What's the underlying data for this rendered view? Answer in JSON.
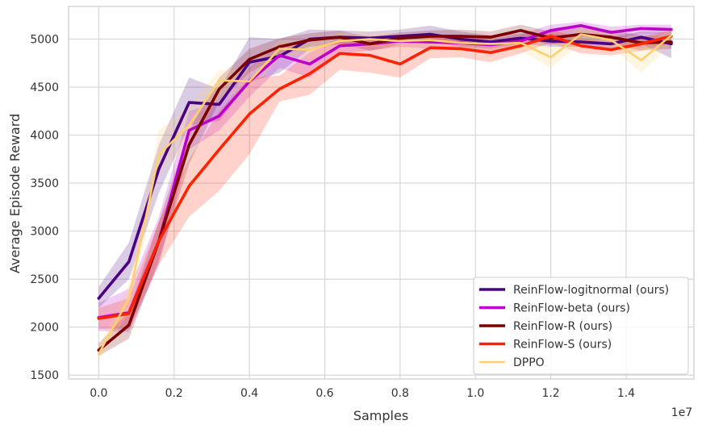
{
  "chart_data": {
    "type": "line",
    "title": "",
    "xlabel": "Samples",
    "ylabel": "Average Episode Reward",
    "x_offset_label": "1e7",
    "xlim": [
      -0.08,
      1.58
    ],
    "ylim": [
      1460,
      5340
    ],
    "xticks": [
      0.0,
      0.2,
      0.4,
      0.6,
      0.8,
      1.0,
      1.2,
      1.4
    ],
    "xtick_labels": [
      "0.0",
      "0.2",
      "0.4",
      "0.6",
      "0.8",
      "1.0",
      "1.2",
      "1.4"
    ],
    "yticks": [
      1500,
      2000,
      2500,
      3000,
      3500,
      4000,
      4500,
      5000
    ],
    "ytick_labels": [
      "1500",
      "2000",
      "2500",
      "3000",
      "3500",
      "4000",
      "4500",
      "5000"
    ],
    "grid": true,
    "legend_position": "bottom-right",
    "series": [
      {
        "name": "ReinFlow-logitnormal (ours)",
        "color": "#4b0082",
        "x": [
          0.0,
          0.08,
          0.16,
          0.24,
          0.32,
          0.4,
          0.48,
          0.56,
          0.64,
          0.72,
          0.8,
          0.88,
          0.96,
          1.04,
          1.12,
          1.2,
          1.28,
          1.36,
          1.44,
          1.52
        ],
        "values": [
          2300,
          2680,
          3650,
          4340,
          4320,
          4760,
          4820,
          5000,
          5020,
          5010,
          5030,
          5050,
          5000,
          4970,
          5010,
          4980,
          4970,
          4950,
          5020,
          4950
        ],
        "lower": [
          2200,
          2500,
          3400,
          4100,
          4150,
          4550,
          4650,
          4900,
          4950,
          4950,
          4970,
          4980,
          4920,
          4900,
          4950,
          4920,
          4920,
          4880,
          4950,
          4800
        ],
        "upper": [
          2420,
          2880,
          3900,
          4600,
          4480,
          5020,
          5000,
          5100,
          5090,
          5080,
          5100,
          5140,
          5080,
          5040,
          5060,
          5050,
          5030,
          5020,
          5080,
          5080
        ]
      },
      {
        "name": "ReinFlow-beta (ours)",
        "color": "#bb00cc",
        "x": [
          0.0,
          0.08,
          0.16,
          0.24,
          0.32,
          0.4,
          0.48,
          0.56,
          0.64,
          0.72,
          0.8,
          0.88,
          0.96,
          1.04,
          1.12,
          1.2,
          1.28,
          1.36,
          1.44,
          1.52
        ],
        "values": [
          2100,
          2150,
          2900,
          4050,
          4200,
          4560,
          4830,
          4740,
          4930,
          4950,
          4980,
          4970,
          4960,
          4940,
          4980,
          5090,
          5140,
          5070,
          5110,
          5100
        ],
        "lower": [
          1960,
          1950,
          2650,
          3850,
          4050,
          4400,
          4700,
          4600,
          4850,
          4880,
          4920,
          4900,
          4900,
          4880,
          4920,
          5000,
          5050,
          5000,
          5050,
          5040
        ],
        "upper": [
          2250,
          2400,
          3150,
          4250,
          4350,
          4700,
          4950,
          4880,
          5010,
          5020,
          5040,
          5040,
          5030,
          5000,
          5050,
          5150,
          5180,
          5130,
          5150,
          5150
        ]
      },
      {
        "name": "ReinFlow-R (ours)",
        "color": "#7b0000",
        "x": [
          0.0,
          0.08,
          0.16,
          0.24,
          0.32,
          0.4,
          0.48,
          0.56,
          0.64,
          0.72,
          0.8,
          0.88,
          0.96,
          1.04,
          1.12,
          1.2,
          1.28,
          1.36,
          1.44,
          1.52
        ],
        "values": [
          1760,
          2020,
          2900,
          3900,
          4480,
          4790,
          4920,
          4990,
          5020,
          4950,
          5010,
          5030,
          5030,
          5020,
          5090,
          5010,
          5050,
          5020,
          4960,
          4970
        ],
        "lower": [
          1700,
          1880,
          2700,
          3700,
          4350,
          4650,
          4830,
          4920,
          4950,
          4880,
          4940,
          4970,
          4960,
          4960,
          5020,
          4940,
          4980,
          4950,
          4880,
          4900
        ],
        "upper": [
          1830,
          2160,
          3100,
          4050,
          4600,
          4900,
          5010,
          5060,
          5090,
          5020,
          5070,
          5090,
          5100,
          5080,
          5150,
          5080,
          5120,
          5090,
          5040,
          5040
        ]
      },
      {
        "name": "ReinFlow-S (ours)",
        "color": "#ff2200",
        "x": [
          0.0,
          0.08,
          0.16,
          0.24,
          0.32,
          0.4,
          0.48,
          0.56,
          0.64,
          0.72,
          0.8,
          0.88,
          0.96,
          1.04,
          1.12,
          1.2,
          1.28,
          1.36,
          1.44,
          1.52
        ],
        "values": [
          2090,
          2140,
          2900,
          3470,
          3850,
          4220,
          4480,
          4640,
          4850,
          4830,
          4740,
          4910,
          4900,
          4860,
          4930,
          5030,
          4930,
          4890,
          4950,
          5030
        ],
        "lower": [
          1980,
          1980,
          2650,
          3150,
          3420,
          3800,
          4350,
          4420,
          4680,
          4650,
          4600,
          4800,
          4810,
          4760,
          4850,
          4960,
          4850,
          4830,
          4880,
          4960
        ],
        "upper": [
          2200,
          2300,
          3100,
          3750,
          4250,
          4600,
          4620,
          4860,
          4990,
          5000,
          4930,
          5010,
          4990,
          4950,
          5010,
          5100,
          5010,
          4960,
          5020,
          5090
        ]
      },
      {
        "name": "DPPO",
        "color": "#ffd070",
        "x": [
          0.0,
          0.08,
          0.16,
          0.24,
          0.32,
          0.4,
          0.48,
          0.56,
          0.64,
          0.72,
          0.8,
          0.88,
          0.96,
          1.04,
          1.12,
          1.2,
          1.28,
          1.36,
          1.44,
          1.52
        ],
        "values": [
          1720,
          2300,
          3800,
          4100,
          4570,
          4560,
          4900,
          4890,
          4980,
          5000,
          4980,
          4990,
          4960,
          4950,
          4960,
          4810,
          5050,
          4990,
          4780,
          5040
        ],
        "lower": [
          1650,
          2150,
          3600,
          3900,
          4400,
          4450,
          4800,
          4800,
          4900,
          4920,
          4900,
          4920,
          4880,
          4880,
          4880,
          4700,
          4960,
          4920,
          4650,
          4950
        ],
        "upper": [
          1800,
          2450,
          4050,
          4300,
          4680,
          4680,
          4990,
          4980,
          5060,
          5080,
          5060,
          5060,
          5030,
          5020,
          5040,
          4920,
          5130,
          5060,
          4900,
          5120
        ]
      }
    ]
  }
}
